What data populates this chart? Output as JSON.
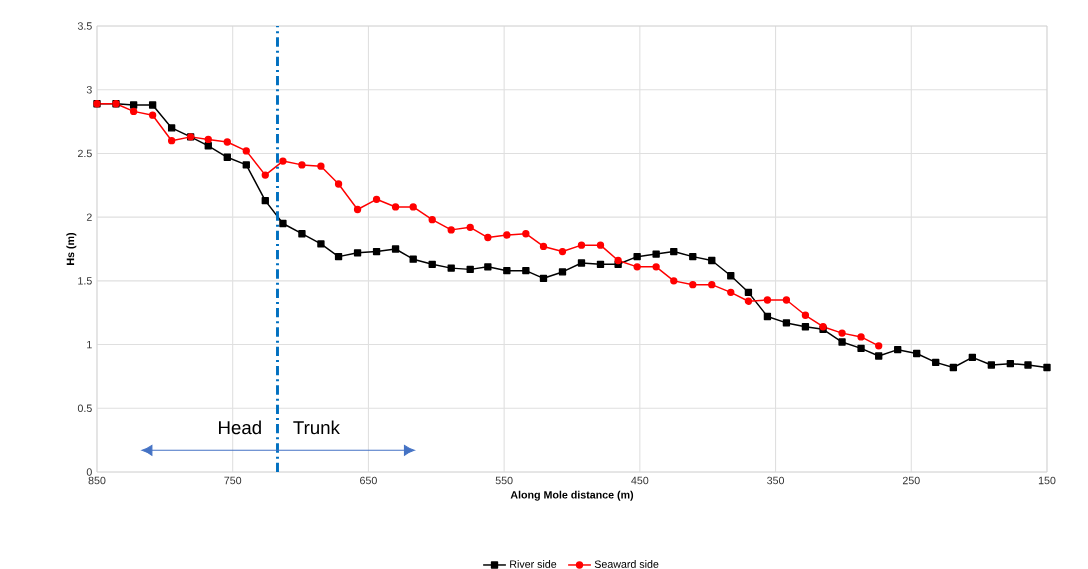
{
  "chart_data": {
    "type": "line",
    "xlabel": "Along Mole distance (m)",
    "ylabel": "Hs (m)",
    "xlim": [
      850,
      150
    ],
    "ylim": [
      0,
      3.5
    ],
    "xticks": [
      850,
      750,
      650,
      550,
      450,
      350,
      250,
      150
    ],
    "yticks": [
      0,
      0.5,
      1,
      1.5,
      2,
      2.5,
      3,
      3.5
    ],
    "grid": true,
    "legend": "bottom",
    "line_style": "solid",
    "ref_lines": [
      {
        "axis": "x",
        "value": 717,
        "color": "#0070c0",
        "line_style": "dashdot"
      }
    ],
    "annotations": [
      "Head",
      "Trunk"
    ],
    "series": [
      {
        "name": "River side",
        "color": "#000000",
        "marker": "square",
        "x": [
          850,
          836,
          823,
          809,
          795,
          781,
          768,
          754,
          740,
          726,
          713,
          699,
          685,
          672,
          658,
          644,
          630,
          617,
          603,
          589,
          575,
          562,
          548,
          534,
          521,
          507,
          493,
          479,
          466,
          452,
          438,
          425,
          411,
          397,
          383,
          370,
          356,
          342,
          328,
          315,
          301,
          287,
          274,
          260,
          246,
          232,
          219,
          205,
          191,
          177,
          164,
          150
        ],
        "values": [
          2.89,
          2.89,
          2.88,
          2.88,
          2.7,
          2.63,
          2.56,
          2.47,
          2.41,
          2.13,
          1.95,
          1.87,
          1.79,
          1.69,
          1.72,
          1.73,
          1.75,
          1.67,
          1.63,
          1.6,
          1.59,
          1.61,
          1.58,
          1.58,
          1.52,
          1.57,
          1.64,
          1.63,
          1.63,
          1.69,
          1.71,
          1.73,
          1.69,
          1.66,
          1.54,
          1.41,
          1.22,
          1.17,
          1.14,
          1.12,
          1.02,
          0.97,
          0.91,
          0.96,
          0.93,
          0.86,
          0.82,
          0.9,
          0.84,
          0.85,
          0.84,
          0.82
        ]
      },
      {
        "name": "Seaward side",
        "color": "#ff0000",
        "marker": "circle",
        "x": [
          850,
          836,
          823,
          809,
          795,
          781,
          768,
          754,
          740,
          726,
          713,
          699,
          685,
          672,
          658,
          644,
          630,
          617,
          603,
          589,
          575,
          562,
          548,
          534,
          521,
          507,
          493,
          479,
          466,
          452,
          438,
          425,
          411,
          397,
          383,
          370,
          356,
          342,
          328,
          315,
          301,
          287,
          274
        ],
        "values": [
          2.89,
          2.89,
          2.83,
          2.8,
          2.6,
          2.63,
          2.61,
          2.59,
          2.52,
          2.33,
          2.44,
          2.41,
          2.4,
          2.26,
          2.06,
          2.14,
          2.08,
          2.08,
          1.98,
          1.9,
          1.92,
          1.84,
          1.86,
          1.87,
          1.77,
          1.73,
          1.78,
          1.78,
          1.66,
          1.61,
          1.61,
          1.5,
          1.47,
          1.47,
          1.41,
          1.34,
          1.35,
          1.35,
          1.23,
          1.14,
          1.09,
          1.06,
          0.99
        ]
      }
    ]
  }
}
